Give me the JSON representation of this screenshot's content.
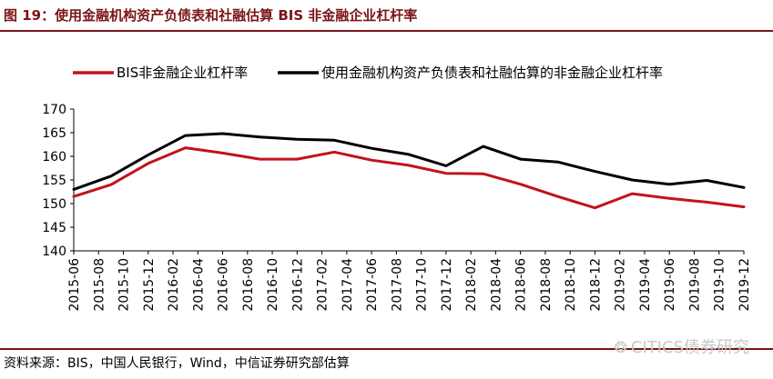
{
  "figure": {
    "title": "图 19：使用金融机构资产负债表和社融估算 BIS 非金融企业杠杆率",
    "source": "资料来源：BIS，中国人民银行，Wind，中信证券研究部估算",
    "watermark": "CITICS债券研究",
    "watermark_icon": "wechat-icon"
  },
  "colors": {
    "accent": "#7a1418",
    "series_bis": "#c0141b",
    "series_est": "#000000"
  },
  "chart_data": {
    "type": "line",
    "title": "",
    "xlabel": "",
    "ylabel": "",
    "ylim": [
      140,
      170
    ],
    "yticks": [
      140,
      145,
      150,
      155,
      160,
      165,
      170
    ],
    "grid": false,
    "legend_position": "top",
    "x": [
      "2015-06",
      "2015-08",
      "2015-10",
      "2015-12",
      "2016-02",
      "2016-04",
      "2016-06",
      "2016-08",
      "2016-10",
      "2016-12",
      "2017-02",
      "2017-04",
      "2017-06",
      "2017-08",
      "2017-10",
      "2017-12",
      "2018-02",
      "2018-04",
      "2018-06",
      "2018-08",
      "2018-10",
      "2018-12",
      "2019-02",
      "2019-04",
      "2019-06",
      "2019-08",
      "2019-10",
      "2019-12"
    ],
    "series": [
      {
        "name": "BIS非金融企业杠杆率",
        "color": "#c0141b",
        "x": [
          "2015-06",
          "2015-09",
          "2015-12",
          "2016-03",
          "2016-06",
          "2016-09",
          "2016-12",
          "2017-03",
          "2017-06",
          "2017-09",
          "2017-12",
          "2018-03",
          "2018-06",
          "2018-09",
          "2018-12",
          "2019-03",
          "2019-06",
          "2019-09",
          "2019-12"
        ],
        "values": [
          151.5,
          154.0,
          158.5,
          161.8,
          160.7,
          159.4,
          159.4,
          160.9,
          159.2,
          158.1,
          156.4,
          156.3,
          154.1,
          151.5,
          149.1,
          152.1,
          151.1,
          150.3,
          149.3
        ]
      },
      {
        "name": "使用金融机构资产负债表和社融估算的非金融企业杠杆率",
        "color": "#000000",
        "x": [
          "2015-06",
          "2015-09",
          "2015-12",
          "2016-03",
          "2016-06",
          "2016-09",
          "2016-12",
          "2017-03",
          "2017-06",
          "2017-09",
          "2017-12",
          "2018-03",
          "2018-06",
          "2018-09",
          "2018-12",
          "2019-03",
          "2019-06",
          "2019-09",
          "2019-12"
        ],
        "values": [
          153.0,
          155.8,
          160.3,
          164.4,
          164.8,
          164.1,
          163.6,
          163.4,
          161.7,
          160.4,
          158.0,
          162.1,
          159.4,
          158.8,
          156.8,
          155.0,
          154.1,
          154.9,
          153.4
        ]
      }
    ]
  }
}
